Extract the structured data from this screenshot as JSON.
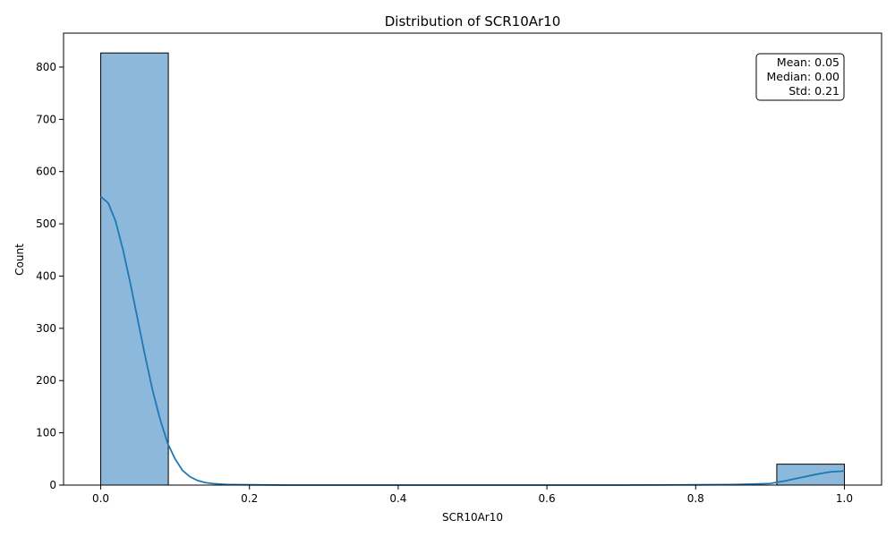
{
  "chart_data": {
    "type": "bar",
    "title": "Distribution of SCR10Ar10",
    "xlabel": "SCR10Ar10",
    "ylabel": "Count",
    "xlim": [
      -0.05,
      1.05
    ],
    "ylim": [
      0,
      865
    ],
    "x_ticks": [
      0.0,
      0.2,
      0.4,
      0.6,
      0.8,
      1.0
    ],
    "x_tick_labels": [
      "0.0",
      "0.2",
      "0.4",
      "0.6",
      "0.8",
      "1.0"
    ],
    "y_ticks": [
      0,
      100,
      200,
      300,
      400,
      500,
      600,
      700,
      800
    ],
    "y_tick_labels": [
      "0",
      "100",
      "200",
      "300",
      "400",
      "500",
      "600",
      "700",
      "800"
    ],
    "bins": [
      {
        "start": 0.0,
        "end": 0.0909,
        "count": 827
      },
      {
        "start": 0.0909,
        "end": 0.1818,
        "count": 0
      },
      {
        "start": 0.1818,
        "end": 0.2727,
        "count": 0
      },
      {
        "start": 0.2727,
        "end": 0.3636,
        "count": 0
      },
      {
        "start": 0.3636,
        "end": 0.4545,
        "count": 0
      },
      {
        "start": 0.4545,
        "end": 0.5455,
        "count": 0
      },
      {
        "start": 0.5455,
        "end": 0.6364,
        "count": 0
      },
      {
        "start": 0.6364,
        "end": 0.7273,
        "count": 0
      },
      {
        "start": 0.7273,
        "end": 0.8182,
        "count": 0
      },
      {
        "start": 0.8182,
        "end": 0.9091,
        "count": 0
      },
      {
        "start": 0.9091,
        "end": 1.0,
        "count": 40
      }
    ],
    "kde": {
      "x": [
        0.0,
        0.01,
        0.02,
        0.03,
        0.04,
        0.05,
        0.06,
        0.07,
        0.08,
        0.09,
        0.1,
        0.11,
        0.12,
        0.13,
        0.14,
        0.15,
        0.17,
        0.2,
        0.25,
        0.3,
        0.4,
        0.5,
        0.6,
        0.7,
        0.8,
        0.85,
        0.88,
        0.9,
        0.92,
        0.94,
        0.96,
        0.98,
        1.0
      ],
      "y": [
        552,
        540,
        505,
        450,
        385,
        315,
        245,
        180,
        125,
        80,
        50,
        28,
        16,
        9,
        5,
        3,
        1,
        0.5,
        0,
        0,
        0,
        0,
        0,
        0,
        0.5,
        1,
        2,
        3,
        8,
        14,
        20,
        25,
        27
      ]
    },
    "bar_color": "#8cb9db",
    "bar_edge_color": "#000000",
    "kde_color": "#1f77b4",
    "grid": false,
    "legend": "none",
    "stats_box": {
      "position": "top-right",
      "lines": [
        "Mean: 0.05",
        "Median: 0.00",
        "Std: 0.21"
      ]
    }
  }
}
